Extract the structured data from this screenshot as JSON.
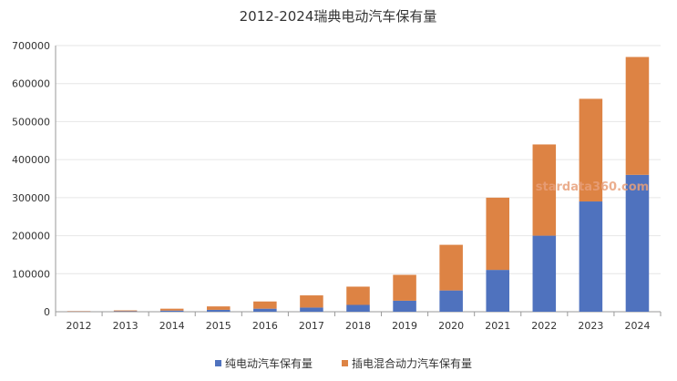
{
  "chart_data": {
    "type": "bar",
    "stacked": true,
    "title": "2012-2024瑞典电动汽车保有量",
    "xlabel": "",
    "ylabel": "",
    "categories": [
      "2012",
      "2013",
      "2014",
      "2015",
      "2016",
      "2017",
      "2018",
      "2019",
      "2020",
      "2021",
      "2022",
      "2023",
      "2024"
    ],
    "series": [
      {
        "name": "纯电动汽车保有量",
        "color": "#4f72be",
        "values": [
          600,
          1300,
          3000,
          5000,
          8000,
          11000,
          18000,
          29000,
          56000,
          110000,
          200000,
          290000,
          360000
        ]
      },
      {
        "name": "插电混合动力汽车保有量",
        "color": "#dd8344",
        "values": [
          1000,
          2200,
          5000,
          9000,
          19000,
          32000,
          48000,
          68000,
          120000,
          190000,
          240000,
          270000,
          310000
        ]
      }
    ],
    "ylim": [
      0,
      700000
    ],
    "yticks": [
      "0",
      "100000",
      "200000",
      "300000",
      "400000",
      "500000",
      "600000",
      "700000"
    ],
    "grid": true,
    "legend_position": "bottom",
    "watermark": "stardata360.com"
  }
}
